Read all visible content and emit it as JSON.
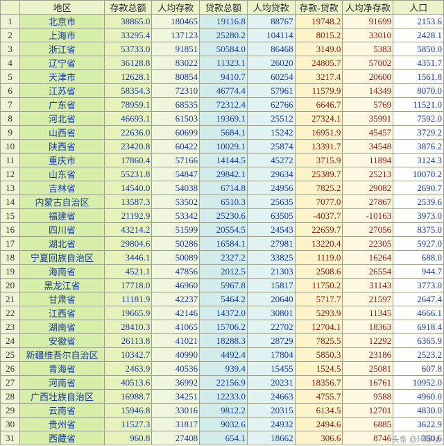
{
  "watermark": "头条 @环球视",
  "columns": [
    "",
    "地区",
    "存款总额",
    "人均存款",
    "贷款总额",
    "人均贷款",
    "存款-贷款",
    "人均净存款",
    "人口"
  ],
  "colKeys": [
    "idx",
    "region",
    "dep",
    "pcdep",
    "loan",
    "pcloan",
    "diff",
    "pcnet",
    "pop"
  ],
  "colClasses": [
    "c-idx",
    "c-region",
    "c-dep",
    "c-pcdep",
    "c-loan",
    "c-pcloan",
    "c-diff",
    "c-pcnet",
    "c-pop"
  ],
  "cellClasses": [
    "idx",
    "region",
    "dep",
    "pcdep",
    "loan",
    "pcloan",
    "diff",
    "pcnet",
    "pop"
  ],
  "rows": [
    [
      "1",
      "北京市",
      "38865.0",
      "180465",
      "19116.8",
      "88767",
      "19748.2",
      "91699",
      "2153.6"
    ],
    [
      "2",
      "上海市",
      "33295.4",
      "137123",
      "25280.2",
      "104114",
      "8015.2",
      "33010",
      "2428.1"
    ],
    [
      "3",
      "浙江省",
      "53733.0",
      "91851",
      "50584.0",
      "86468",
      "3149.0",
      "5383",
      "5850.0"
    ],
    [
      "4",
      "辽宁省",
      "36128.8",
      "83022",
      "11323.1",
      "26020",
      "24805.7",
      "57002",
      "4351.7"
    ],
    [
      "5",
      "天津市",
      "12628.1",
      "80854",
      "9410.7",
      "60254",
      "3217.4",
      "20600",
      "1561.8"
    ],
    [
      "6",
      "江苏省",
      "58354.3",
      "72310",
      "46774.4",
      "57961",
      "11579.9",
      "14349",
      "8070.0"
    ],
    [
      "7",
      "广东省",
      "78959.1",
      "68535",
      "72312.4",
      "62766",
      "6646.7",
      "5769",
      "11521.0"
    ],
    [
      "8",
      "河北省",
      "46693.1",
      "61503",
      "19369.1",
      "25512",
      "27324.1",
      "35991",
      "7592.0"
    ],
    [
      "9",
      "山西省",
      "22636.0",
      "60699",
      "5684.1",
      "15242",
      "16951.9",
      "45457",
      "3729.2"
    ],
    [
      "10",
      "陕西省",
      "23420.8",
      "60422",
      "10029.1",
      "25874",
      "13391.7",
      "34548",
      "3876.2"
    ],
    [
      "11",
      "重庆市",
      "17860.4",
      "57166",
      "14144.5",
      "45272",
      "3715.9",
      "11894",
      "3124.3"
    ],
    [
      "12",
      "山东省",
      "55231.8",
      "54847",
      "29842.1",
      "29634",
      "25389.7",
      "25213",
      "10070.2"
    ],
    [
      "13",
      "吉林省",
      "14540.0",
      "54038",
      "6714.8",
      "24956",
      "7825.2",
      "29082",
      "2690.7"
    ],
    [
      "14",
      "内蒙古自治区",
      "13587.3",
      "53502",
      "6510.3",
      "25635",
      "7077.0",
      "27867",
      "2539.6"
    ],
    [
      "15",
      "福建省",
      "21192.9",
      "53342",
      "25230.6",
      "63505",
      "-4037.7",
      "-10163",
      "3973.0"
    ],
    [
      "16",
      "四川省",
      "43214.2",
      "51599",
      "20554.5",
      "24543",
      "22659.7",
      "27056",
      "8375.0"
    ],
    [
      "17",
      "湖北省",
      "29804.6",
      "50286",
      "16584.1",
      "27981",
      "13220.4",
      "22305",
      "5927.0"
    ],
    [
      "18",
      "宁夏回族自治区",
      "3446.1",
      "50089",
      "2327.2",
      "33825",
      "1119.0",
      "16264",
      "688.0"
    ],
    [
      "19",
      "海南省",
      "4521.1",
      "47856",
      "2012.5",
      "21303",
      "2508.6",
      "26554",
      "944.7"
    ],
    [
      "20",
      "黑龙江省",
      "17718.0",
      "46960",
      "5967.8",
      "15817",
      "11750.2",
      "31143",
      "3773.0"
    ],
    [
      "21",
      "甘肃省",
      "11181.9",
      "42237",
      "5464.2",
      "20640",
      "5717.7",
      "21597",
      "2647.4"
    ],
    [
      "22",
      "江西省",
      "19665.9",
      "42146",
      "14372.0",
      "30801",
      "5293.9",
      "11345",
      "4666.1"
    ],
    [
      "23",
      "湖南省",
      "28410.3",
      "41065",
      "15706.2",
      "22702",
      "12704.1",
      "18363",
      "6918.4"
    ],
    [
      "24",
      "安徽省",
      "26113.8",
      "41021",
      "18288.3",
      "28729",
      "7825.5",
      "12292",
      "6365.9"
    ],
    [
      "25",
      "新疆维吾尔自治区",
      "10342.7",
      "40990",
      "4492.4",
      "17804",
      "5850.3",
      "23186",
      "2523.2"
    ],
    [
      "26",
      "青海省",
      "2463.9",
      "40536",
      "939.4",
      "15455",
      "1524.5",
      "25081",
      "607.8"
    ],
    [
      "27",
      "河南省",
      "40513.6",
      "36992",
      "22156.9",
      "20231",
      "18356.7",
      "16761",
      "10952.0"
    ],
    [
      "28",
      "广西壮族自治区",
      "16988.7",
      "34251",
      "12233.0",
      "24663",
      "4755.7",
      "9588",
      "4960.0"
    ],
    [
      "29",
      "云南省",
      "15946.8",
      "33016",
      "9812.2",
      "20315",
      "6134.5",
      "12701",
      "4830.0"
    ],
    [
      "30",
      "贵州省",
      "11527.3",
      "31817",
      "9032.6",
      "24932",
      "2494.6",
      "6885",
      "3622.9"
    ],
    [
      "31",
      "西藏省",
      "960.8",
      "27408",
      "654.1",
      "18662",
      "306.6",
      "8746",
      "350.6"
    ]
  ]
}
